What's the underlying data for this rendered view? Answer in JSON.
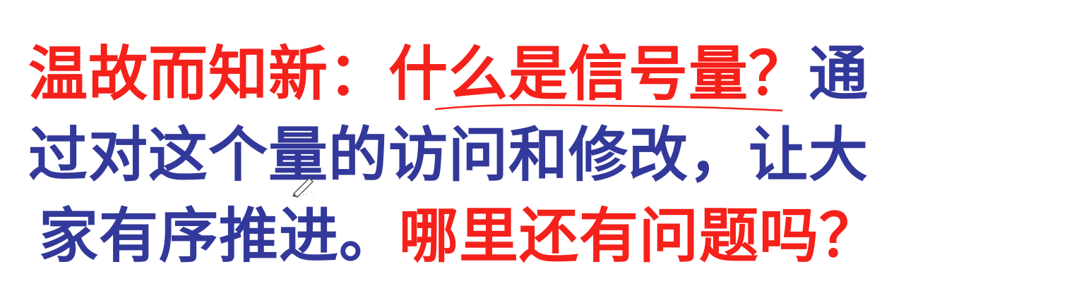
{
  "slide": {
    "line1": {
      "lead": "温故而知新：",
      "question": "什么是信号量？",
      "tail": "通"
    },
    "line2": {
      "text": "过对这个量的访问和修改，让大"
    },
    "line3": {
      "text": "家有序推进。",
      "question": "哪里还有问题吗？"
    }
  },
  "colors": {
    "red": "#f5211a",
    "blue": "#33399a",
    "background": "#ffffff"
  },
  "icons": {
    "underline": "hand-drawn-underline",
    "cursor": "pen-cursor-icon"
  }
}
